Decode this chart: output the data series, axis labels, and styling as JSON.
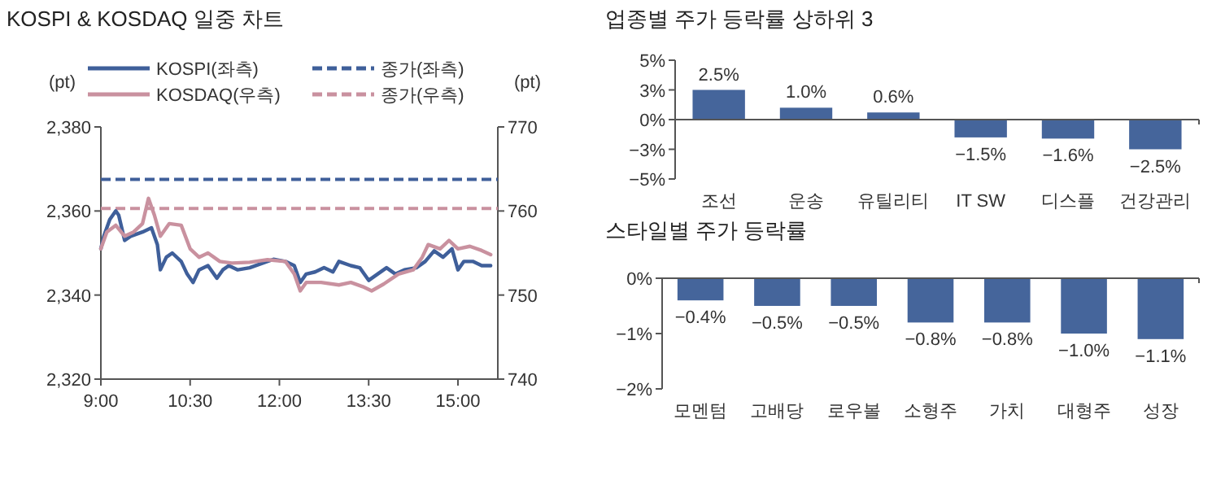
{
  "chart_data": [
    {
      "type": "line",
      "title": "KOSPI & KOSDAQ 일중 차트",
      "ylabel": "(pt)",
      "y2label": "(pt)",
      "legend": "top",
      "line_style": "solid",
      "xlim": [
        9,
        15.67
      ],
      "xticks": [
        {
          "value": 9,
          "label": "9:00"
        },
        {
          "value": 10.5,
          "label": "10:30"
        },
        {
          "value": 12,
          "label": "12:00"
        },
        {
          "value": 13.5,
          "label": "13:30"
        },
        {
          "value": 15,
          "label": "15:00"
        }
      ],
      "ylim": [
        2320,
        2380
      ],
      "yticks": [
        {
          "value": 2320,
          "label": "2,320"
        },
        {
          "value": 2340,
          "label": "2,340"
        },
        {
          "value": 2360,
          "label": "2,360"
        },
        {
          "value": 2380,
          "label": "2,380"
        }
      ],
      "y2lim": [
        740,
        770
      ],
      "y2ticks": [
        740,
        750,
        760,
        770
      ],
      "series": [
        {
          "name": "KOSPI(좌측)",
          "color": "#3f5f9a",
          "x": [
            9.0,
            9.05,
            9.15,
            9.25,
            9.3,
            9.4,
            9.5,
            9.7,
            9.85,
            9.95,
            10.0,
            10.1,
            10.2,
            10.35,
            10.45,
            10.55,
            10.65,
            10.8,
            10.95,
            11.05,
            11.15,
            11.3,
            11.5,
            11.7,
            11.9,
            12.1,
            12.25,
            12.35,
            12.45,
            12.6,
            12.75,
            12.9,
            13.0,
            13.2,
            13.35,
            13.5,
            13.65,
            13.8,
            13.95,
            14.1,
            14.3,
            14.45,
            14.6,
            14.75,
            14.9,
            15.0,
            15.1,
            15.25,
            15.4,
            15.55
          ],
          "values": [
            2351,
            2354,
            2358,
            2360,
            2359,
            2353,
            2354,
            2355,
            2356,
            2352,
            2346,
            2349,
            2350,
            2348,
            2345,
            2343,
            2346,
            2347,
            2344,
            2346,
            2347,
            2346,
            2346.5,
            2347.5,
            2348.5,
            2348,
            2347,
            2343,
            2345,
            2345.5,
            2346.5,
            2345.5,
            2348,
            2347,
            2346.5,
            2343.5,
            2345,
            2346.5,
            2345,
            2346,
            2346.5,
            2348,
            2350.5,
            2349,
            2351,
            2346,
            2348,
            2348,
            2347,
            2347
          ]
        },
        {
          "name": "KOSDAQ(우측)",
          "color": "#c9919f",
          "axis": "y2",
          "x": [
            9.0,
            9.1,
            9.25,
            9.4,
            9.55,
            9.7,
            9.8,
            9.9,
            10.0,
            10.15,
            10.35,
            10.5,
            10.65,
            10.8,
            11.0,
            11.2,
            11.5,
            11.8,
            12.1,
            12.25,
            12.35,
            12.45,
            12.7,
            13.0,
            13.2,
            13.4,
            13.55,
            13.75,
            14.0,
            14.25,
            14.4,
            14.5,
            14.7,
            14.85,
            15.0,
            15.2,
            15.4,
            15.55
          ],
          "values": [
            755.5,
            757.5,
            758.3,
            757,
            757.5,
            758.5,
            761.5,
            759.5,
            757,
            758.5,
            758.3,
            755.5,
            754.5,
            755,
            754,
            753.8,
            753.9,
            754.2,
            754,
            752.5,
            750.5,
            751.5,
            751.5,
            751.2,
            751.5,
            751,
            750.5,
            751.3,
            752.5,
            753,
            754.5,
            756,
            755.5,
            756.5,
            755.5,
            755.8,
            755.3,
            754.8
          ]
        }
      ],
      "ref_lines": [
        {
          "axis": "y",
          "value": 2367.5,
          "label": "종가(좌측)",
          "color": "#3f5f9a",
          "line_style": "dashed"
        },
        {
          "axis": "y2",
          "value": 760.3,
          "label": "종가(우측)",
          "color": "#c9919f",
          "line_style": "dashed"
        }
      ]
    },
    {
      "type": "bar",
      "title": "업종별 주가 등락률 상하위 3",
      "categories": [
        "조선",
        "운송",
        "유틸리티",
        "IT SW",
        "디스플",
        "건강관리"
      ],
      "values": [
        2.5,
        1.0,
        0.6,
        -1.5,
        -1.6,
        -2.5
      ],
      "color": "#45659b",
      "value_labels": [
        "2.5%",
        "1.0%",
        "0.6%",
        "−1.5%",
        "−1.6%",
        "−2.5%"
      ],
      "ylim": [
        -5,
        5
      ],
      "yticks": [
        {
          "value": 5,
          "label": "5%"
        },
        {
          "value": 2.5,
          "label": "3%"
        },
        {
          "value": 0,
          "label": "0%"
        },
        {
          "value": -2.5,
          "label": "−3%"
        },
        {
          "value": -5,
          "label": "−5%"
        }
      ]
    },
    {
      "type": "bar",
      "title": "스타일별 주가 등락률",
      "categories": [
        "모멘텀",
        "고배당",
        "로우볼",
        "소형주",
        "가치",
        "대형주",
        "성장"
      ],
      "values": [
        -0.4,
        -0.5,
        -0.5,
        -0.8,
        -0.8,
        -1.0,
        -1.1
      ],
      "color": "#45659b",
      "value_labels": [
        "−0.4%",
        "−0.5%",
        "−0.5%",
        "−0.8%",
        "−0.8%",
        "−1.0%",
        "−1.1%"
      ],
      "ylim": [
        -2,
        0
      ],
      "yticks": [
        {
          "value": 0,
          "label": "0%"
        },
        {
          "value": -1,
          "label": "−1%"
        },
        {
          "value": -2,
          "label": "−2%"
        }
      ]
    }
  ]
}
